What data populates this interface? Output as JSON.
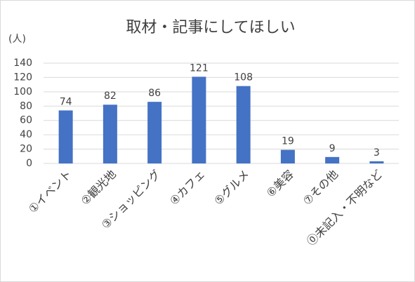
{
  "chart_data": {
    "type": "bar",
    "title": "取材・記事にしてほしい",
    "y_label": "(人)",
    "categories": [
      "①イベント",
      "②観光地",
      "③ショッピング",
      "④カフェ",
      "⑤グルメ",
      "⑥美容",
      "⑦その他",
      "⓪未記入・不明など"
    ],
    "values": [
      74,
      82,
      86,
      121,
      108,
      19,
      9,
      3
    ],
    "color": "#4472c4",
    "ylim": [
      0,
      140
    ],
    "yticks": [
      0,
      20,
      40,
      60,
      80,
      100,
      120,
      140
    ],
    "grid": true
  }
}
